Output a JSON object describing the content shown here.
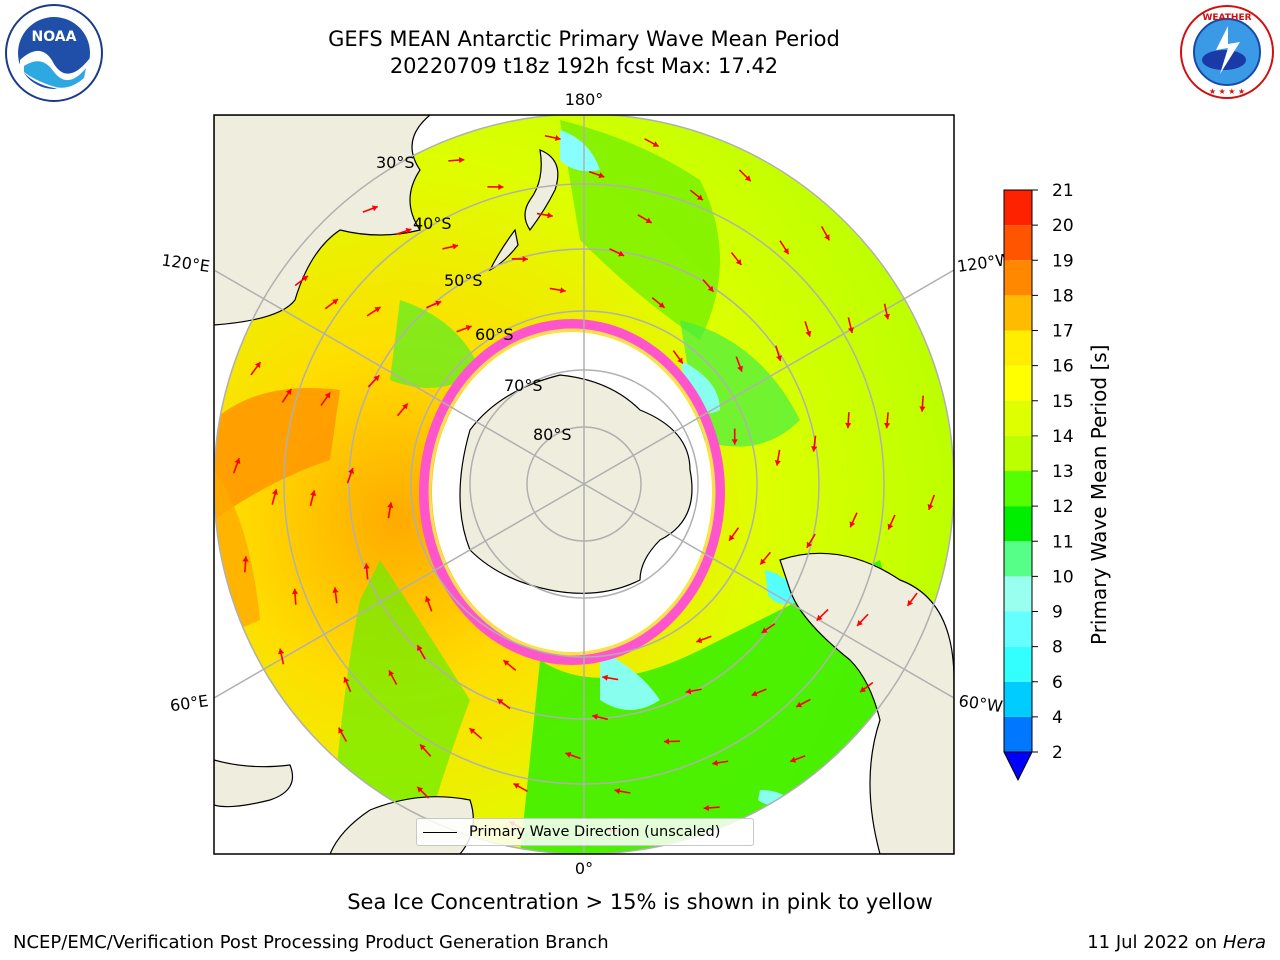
{
  "title": {
    "line1": "GEFS MEAN Antarctic Primary Wave Mean Period",
    "line2": "20220709 t18z 192h fcst   Max: 17.42"
  },
  "logos": {
    "noaa": {
      "text": "NOAA",
      "ring_text": "NATIONAL OCEANIC AND ATMOSPHERIC ADMINISTRATION · U.S. DEPARTMENT OF COMMERCE"
    },
    "nws": {
      "ring_text": "NATIONAL WEATHER SERVICE"
    }
  },
  "map": {
    "projection": "south-polar-stereographic",
    "lon_labels": {
      "top": "180°",
      "left_upper": "120°E",
      "left_lower": "60°E",
      "right_upper": "120°W",
      "right_lower": "60°W",
      "bottom": "0°"
    },
    "lat_labels": [
      "30°S",
      "40°S",
      "50°S",
      "60°S",
      "70°S",
      "80°S"
    ],
    "sea_ice_color_range": [
      "#ff66cc",
      "#ffee44"
    ],
    "legend_label": "Primary Wave Direction (unscaled)",
    "arrow_color": "#ff0000",
    "land_color": "#efedde"
  },
  "colorbar": {
    "label": "Primary Wave Mean Period [s]",
    "ticks": [
      "2",
      "4",
      "6",
      "8",
      "9",
      "10",
      "11",
      "12",
      "13",
      "14",
      "15",
      "16",
      "17",
      "18",
      "19",
      "20",
      "21"
    ],
    "colors": [
      "#0077ff",
      "#00ccff",
      "#33ffff",
      "#66ffff",
      "#99ffee",
      "#55ff88",
      "#00ee00",
      "#55ff00",
      "#bbff00",
      "#ddff00",
      "#ffff00",
      "#ffee00",
      "#ffbb00",
      "#ff8800",
      "#ff5500",
      "#ff2200"
    ],
    "under_color": "#0000ff"
  },
  "subtitle": "Sea Ice Concentration > 15% is shown in pink to yellow",
  "footer": {
    "left": "NCEP/EMC/Verification Post Processing Product Generation Branch",
    "date": "11 Jul 2022 on ",
    "machine": "Hera"
  }
}
